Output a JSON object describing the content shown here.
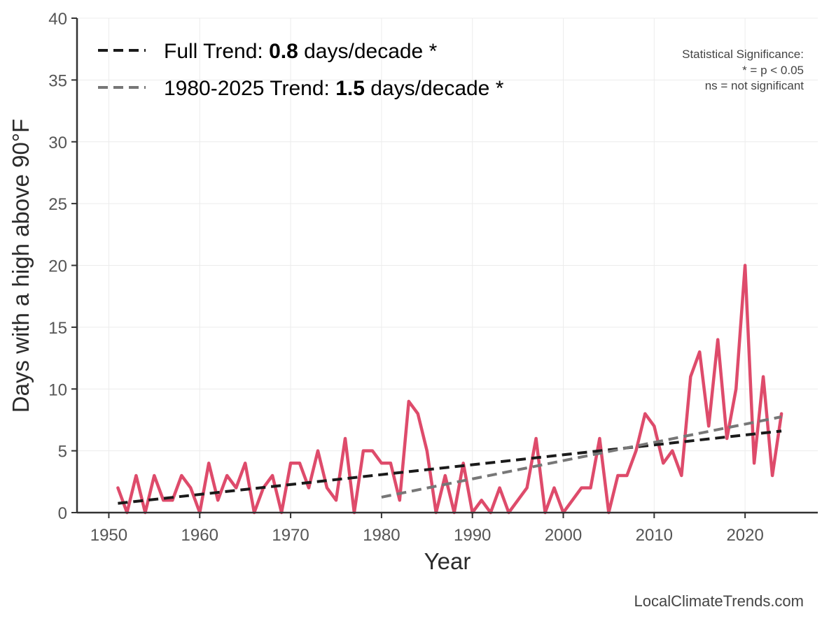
{
  "chart_data": {
    "type": "line",
    "title": "",
    "xlabel": "Year",
    "ylabel": "Days with a high above 90°F",
    "xlim": [
      1946.5,
      2028
    ],
    "ylim": [
      0,
      40
    ],
    "x_ticks": [
      1950,
      1960,
      1970,
      1980,
      1990,
      2000,
      2010,
      2020
    ],
    "y_ticks": [
      0,
      5,
      10,
      15,
      20,
      25,
      30,
      35,
      40
    ],
    "grid": true,
    "legend_position": "top-left",
    "series": [
      {
        "color": "#de4b6b",
        "x": [
          1951,
          1952,
          1953,
          1954,
          1955,
          1956,
          1957,
          1958,
          1959,
          1960,
          1961,
          1962,
          1963,
          1964,
          1965,
          1966,
          1967,
          1968,
          1969,
          1970,
          1971,
          1972,
          1973,
          1974,
          1975,
          1976,
          1977,
          1978,
          1979,
          1980,
          1981,
          1982,
          1983,
          1984,
          1985,
          1986,
          1987,
          1988,
          1989,
          1990,
          1991,
          1992,
          1993,
          1994,
          1995,
          1996,
          1997,
          1998,
          1999,
          2000,
          2001,
          2002,
          2003,
          2004,
          2005,
          2006,
          2007,
          2008,
          2009,
          2010,
          2011,
          2012,
          2013,
          2014,
          2015,
          2016,
          2017,
          2018,
          2019,
          2020,
          2021,
          2022,
          2023,
          2024
        ],
        "values": [
          2,
          0,
          3,
          0,
          3,
          1,
          1,
          3,
          2,
          0,
          4,
          1,
          3,
          2,
          4,
          0,
          2,
          3,
          0,
          4,
          4,
          2,
          5,
          2,
          1,
          6,
          0,
          5,
          5,
          4,
          4,
          1,
          9,
          8,
          5,
          0,
          3,
          0,
          4,
          0,
          1,
          0,
          2,
          0,
          1,
          2,
          6,
          0,
          2,
          0,
          1,
          2,
          2,
          6,
          0,
          3,
          3,
          5,
          8,
          7,
          4,
          5,
          3,
          11,
          13,
          7,
          14,
          6,
          10,
          20,
          4,
          11,
          3,
          8
        ]
      }
    ],
    "trends": [
      {
        "name": "Full Trend",
        "label_prefix": "Full Trend: ",
        "rate": "0.8",
        "label_suffix": " days/decade *",
        "color": "#1a1a1a",
        "x": [
          1951,
          2024
        ],
        "values": [
          0.75,
          6.6
        ]
      },
      {
        "name": "1980-2025 Trend",
        "label_prefix": "1980-2025 Trend: ",
        "rate": "1.5",
        "label_suffix": " days/decade *",
        "color": "#777777",
        "x": [
          1980,
          2024
        ],
        "values": [
          1.25,
          7.75
        ]
      }
    ],
    "annotations": {
      "significance_title": "Statistical Significance:",
      "significance_line1": "* = p < 0.05",
      "significance_line2": "ns = not significant",
      "credit": "LocalClimateTrends.com"
    }
  }
}
